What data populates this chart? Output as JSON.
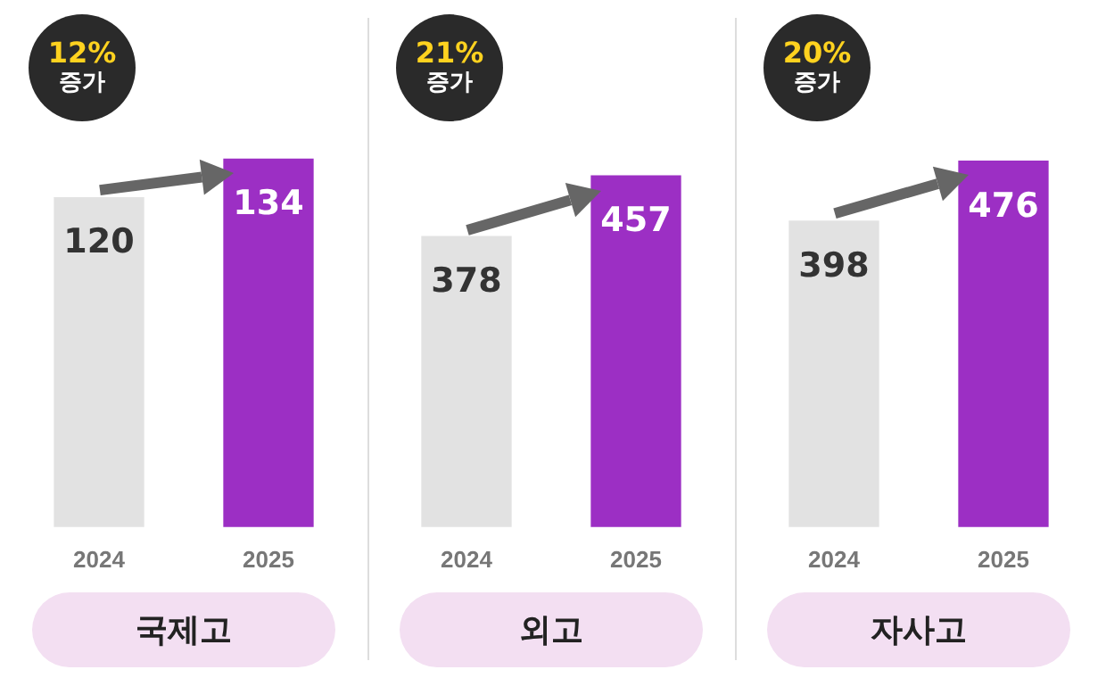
{
  "chart_data": [
    {
      "type": "bar",
      "title": "국제고",
      "categories": [
        "2024",
        "2025"
      ],
      "values": [
        120,
        134
      ],
      "colors": [
        "#e2e2e2",
        "#9c2fc4"
      ],
      "data_labels": true,
      "annotations": [
        "12%",
        "증가"
      ],
      "tick_labels": "x"
    },
    {
      "type": "bar",
      "title": "외고",
      "categories": [
        "2024",
        "2025"
      ],
      "values": [
        378,
        457
      ],
      "colors": [
        "#e2e2e2",
        "#9c2fc4"
      ],
      "data_labels": true,
      "annotations": [
        "21%",
        "증가"
      ],
      "tick_labels": "x"
    },
    {
      "type": "bar",
      "title": "자사고",
      "categories": [
        "2024",
        "2025"
      ],
      "values": [
        398,
        476
      ],
      "colors": [
        "#e2e2e2",
        "#9c2fc4"
      ],
      "data_labels": true,
      "annotations": [
        "20%",
        "증가"
      ],
      "tick_labels": "x"
    }
  ]
}
